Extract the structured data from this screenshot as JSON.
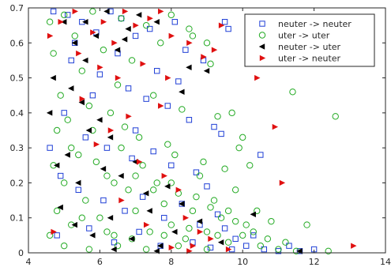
{
  "chart_data": {
    "type": "scatter",
    "title": "",
    "xlabel": "",
    "ylabel": "",
    "xlim": [
      4,
      14
    ],
    "ylim": [
      0,
      0.7
    ],
    "xticks": [
      4,
      6,
      8,
      10,
      12,
      14
    ],
    "yticks": [
      0,
      0.1,
      0.2,
      0.3,
      0.4,
      0.5,
      0.6,
      0.7
    ],
    "xtick_labels": [
      "4",
      "6",
      "8",
      "10",
      "12",
      "14"
    ],
    "ytick_labels": [
      "0",
      "0.1",
      "0.2",
      "0.3",
      "0.4",
      "0.5",
      "0.6",
      "0.7"
    ],
    "grid": false,
    "legend_position": "top-right",
    "series": [
      {
        "name": "neuter -> neuter",
        "marker": "square-open",
        "color": "#1f3fd6",
        "points": [
          [
            4.7,
            0.69
          ],
          [
            5.1,
            0.68
          ],
          [
            5.5,
            0.66
          ],
          [
            5.9,
            0.63
          ],
          [
            6.3,
            0.69
          ],
          [
            6.6,
            0.67
          ],
          [
            7.0,
            0.62
          ],
          [
            7.4,
            0.64
          ],
          [
            8.1,
            0.66
          ],
          [
            8.4,
            0.58
          ],
          [
            8.9,
            0.55
          ],
          [
            9.5,
            0.66
          ],
          [
            9.6,
            0.64
          ],
          [
            5.2,
            0.55
          ],
          [
            6.0,
            0.51
          ],
          [
            6.8,
            0.47
          ],
          [
            7.3,
            0.44
          ],
          [
            7.9,
            0.42
          ],
          [
            8.5,
            0.38
          ],
          [
            9.2,
            0.36
          ],
          [
            9.4,
            0.34
          ],
          [
            5.0,
            0.4
          ],
          [
            5.6,
            0.33
          ],
          [
            6.2,
            0.3
          ],
          [
            6.9,
            0.27
          ],
          [
            7.5,
            0.29
          ],
          [
            8.0,
            0.25
          ],
          [
            8.7,
            0.23
          ],
          [
            10.5,
            0.28
          ],
          [
            4.9,
            0.22
          ],
          [
            5.4,
            0.18
          ],
          [
            6.1,
            0.15
          ],
          [
            6.7,
            0.12
          ],
          [
            7.2,
            0.16
          ],
          [
            7.8,
            0.1
          ],
          [
            8.3,
            0.14
          ],
          [
            8.8,
            0.08
          ],
          [
            9.3,
            0.11
          ],
          [
            9.8,
            0.04
          ],
          [
            10.1,
            0.02
          ],
          [
            10.6,
            0.01
          ],
          [
            11.0,
            0.005
          ],
          [
            11.3,
            0.02
          ],
          [
            11.6,
            0.005
          ],
          [
            12.0,
            0.01
          ],
          [
            4.8,
            0.05
          ],
          [
            5.7,
            0.07
          ],
          [
            6.4,
            0.03
          ],
          [
            7.1,
            0.06
          ],
          [
            7.7,
            0.02
          ],
          [
            8.6,
            0.03
          ],
          [
            9.1,
            0.015
          ],
          [
            9.7,
            0.01
          ],
          [
            5.3,
            0.6
          ],
          [
            6.5,
            0.57
          ],
          [
            7.6,
            0.52
          ],
          [
            8.2,
            0.49
          ],
          [
            5.8,
            0.45
          ],
          [
            4.6,
            0.3
          ],
          [
            7.0,
            0.35
          ],
          [
            9.0,
            0.19
          ],
          [
            9.5,
            0.07
          ],
          [
            10.3,
            0.05
          ]
        ]
      },
      {
        "name": "uter -> uter",
        "marker": "circle-open",
        "color": "#22aa22",
        "points": [
          [
            4.6,
            0.05
          ],
          [
            4.8,
            0.12
          ],
          [
            5.0,
            0.2
          ],
          [
            5.2,
            0.08
          ],
          [
            5.4,
            0.28
          ],
          [
            5.6,
            0.15
          ],
          [
            5.8,
            0.35
          ],
          [
            6.0,
            0.1
          ],
          [
            6.2,
            0.22
          ],
          [
            6.4,
            0.05
          ],
          [
            6.6,
            0.3
          ],
          [
            6.8,
            0.18
          ],
          [
            7.0,
            0.12
          ],
          [
            7.2,
            0.25
          ],
          [
            7.4,
            0.06
          ],
          [
            7.6,
            0.2
          ],
          [
            7.8,
            0.14
          ],
          [
            8.0,
            0.08
          ],
          [
            8.2,
            0.17
          ],
          [
            8.4,
            0.04
          ],
          [
            8.6,
            0.12
          ],
          [
            8.8,
            0.22
          ],
          [
            9.0,
            0.06
          ],
          [
            9.2,
            0.15
          ],
          [
            9.4,
            0.1
          ],
          [
            9.6,
            0.03
          ],
          [
            9.8,
            0.18
          ],
          [
            10.0,
            0.05
          ],
          [
            10.5,
            0.02
          ],
          [
            11.0,
            0.01
          ],
          [
            11.5,
            0.005
          ],
          [
            11.8,
            0.08
          ],
          [
            12.4,
            0.005
          ],
          [
            12.6,
            0.39
          ],
          [
            11.4,
            0.46
          ],
          [
            9.3,
            0.39
          ],
          [
            8.3,
            0.41
          ],
          [
            7.5,
            0.45
          ],
          [
            6.5,
            0.48
          ],
          [
            5.5,
            0.52
          ],
          [
            4.7,
            0.57
          ],
          [
            5.3,
            0.62
          ],
          [
            6.1,
            0.58
          ],
          [
            6.9,
            0.55
          ],
          [
            7.7,
            0.6
          ],
          [
            8.6,
            0.62
          ],
          [
            9.1,
            0.54
          ],
          [
            9.7,
            0.4
          ],
          [
            10.0,
            0.33
          ],
          [
            10.2,
            0.25
          ],
          [
            9.9,
            0.3
          ],
          [
            10.4,
            0.12
          ],
          [
            10.8,
            0.09
          ],
          [
            4.9,
            0.45
          ],
          [
            5.1,
            0.38
          ],
          [
            5.7,
            0.42
          ],
          [
            6.3,
            0.4
          ],
          [
            6.7,
            0.36
          ],
          [
            7.1,
            0.33
          ],
          [
            7.9,
            0.31
          ],
          [
            8.1,
            0.28
          ],
          [
            8.9,
            0.26
          ],
          [
            9.5,
            0.24
          ],
          [
            4.6,
            0.66
          ],
          [
            5.0,
            0.68
          ],
          [
            5.8,
            0.69
          ],
          [
            6.6,
            0.67
          ],
          [
            7.3,
            0.65
          ],
          [
            8.0,
            0.68
          ],
          [
            8.5,
            0.64
          ],
          [
            9.0,
            0.6
          ],
          [
            4.7,
            0.25
          ],
          [
            5.2,
            0.3
          ],
          [
            5.9,
            0.26
          ],
          [
            6.4,
            0.2
          ],
          [
            7.0,
            0.22
          ],
          [
            7.5,
            0.18
          ],
          [
            8.0,
            0.2
          ],
          [
            8.7,
            0.16
          ],
          [
            9.1,
            0.13
          ],
          [
            9.6,
            0.12
          ],
          [
            10.1,
            0.08
          ],
          [
            10.7,
            0.04
          ],
          [
            11.2,
            0.03
          ],
          [
            4.8,
            0.35
          ],
          [
            5.5,
            0.1
          ],
          [
            6.2,
            0.06
          ],
          [
            6.9,
            0.04
          ],
          [
            7.8,
            0.05
          ],
          [
            8.5,
            0.07
          ],
          [
            9.3,
            0.05
          ],
          [
            9.8,
            0.09
          ],
          [
            10.3,
            0.06
          ],
          [
            5.0,
            0.02
          ],
          [
            5.7,
            0.01
          ],
          [
            6.5,
            0.02
          ],
          [
            7.3,
            0.01
          ],
          [
            8.2,
            0.02
          ],
          [
            9.0,
            0.01
          ]
        ]
      },
      {
        "name": "neuter -> uter",
        "marker": "triangle-left-filled",
        "color": "#000000",
        "points": [
          [
            4.7,
            0.5
          ],
          [
            5.0,
            0.66
          ],
          [
            5.3,
            0.6
          ],
          [
            5.6,
            0.55
          ],
          [
            5.9,
            0.62
          ],
          [
            6.2,
            0.69
          ],
          [
            6.5,
            0.58
          ],
          [
            6.8,
            0.64
          ],
          [
            7.1,
            0.68
          ],
          [
            7.6,
            0.66
          ],
          [
            8.3,
            0.46
          ],
          [
            8.5,
            0.53
          ],
          [
            9.0,
            0.52
          ],
          [
            5.2,
            0.47
          ],
          [
            5.5,
            0.43
          ],
          [
            6.0,
            0.38
          ],
          [
            5.7,
            0.35
          ],
          [
            6.3,
            0.33
          ],
          [
            5.1,
            0.28
          ],
          [
            4.8,
            0.25
          ],
          [
            5.4,
            0.2
          ],
          [
            6.1,
            0.24
          ],
          [
            6.6,
            0.22
          ],
          [
            7.0,
            0.26
          ],
          [
            7.3,
            0.17
          ],
          [
            7.9,
            0.19
          ],
          [
            8.3,
            0.14
          ],
          [
            8.8,
            0.09
          ],
          [
            9.4,
            0.03
          ],
          [
            10.3,
            0.11
          ],
          [
            11.6,
            0.005
          ],
          [
            4.9,
            0.13
          ],
          [
            5.3,
            0.08
          ],
          [
            5.8,
            0.05
          ],
          [
            6.3,
            0.1
          ],
          [
            6.9,
            0.04
          ],
          [
            7.4,
            0.12
          ],
          [
            7.7,
            0.02
          ],
          [
            8.1,
            0.06
          ],
          [
            6.4,
            0.01
          ],
          [
            7.6,
            0.005
          ],
          [
            4.6,
            0.4
          ],
          [
            5.6,
            0.66
          ],
          [
            6.7,
            0.61
          ]
        ]
      },
      {
        "name": "uter -> neuter",
        "marker": "triangle-right-filled",
        "color": "#e01010",
        "points": [
          [
            4.6,
            0.62
          ],
          [
            4.9,
            0.66
          ],
          [
            5.3,
            0.69
          ],
          [
            5.8,
            0.63
          ],
          [
            6.1,
            0.66
          ],
          [
            6.4,
            0.6
          ],
          [
            6.7,
            0.69
          ],
          [
            7.0,
            0.65
          ],
          [
            7.4,
            0.67
          ],
          [
            7.7,
            0.69
          ],
          [
            8.0,
            0.62
          ],
          [
            8.5,
            0.6
          ],
          [
            8.9,
            0.56
          ],
          [
            9.2,
            0.58
          ],
          [
            9.4,
            0.65
          ],
          [
            10.4,
            0.5
          ],
          [
            10.9,
            0.36
          ],
          [
            11.1,
            0.2
          ],
          [
            13.1,
            0.02
          ],
          [
            5.4,
            0.57
          ],
          [
            6.0,
            0.53
          ],
          [
            6.5,
            0.5
          ],
          [
            7.2,
            0.54
          ],
          [
            7.9,
            0.5
          ],
          [
            7.7,
            0.42
          ],
          [
            6.8,
            0.39
          ],
          [
            6.3,
            0.35
          ],
          [
            5.9,
            0.31
          ],
          [
            7.1,
            0.26
          ],
          [
            7.8,
            0.22
          ],
          [
            8.2,
            0.18
          ],
          [
            8.4,
            0.1
          ],
          [
            8.8,
            0.06
          ],
          [
            9.1,
            0.04
          ],
          [
            8.6,
            0.02
          ],
          [
            8.0,
            0.015
          ],
          [
            5.5,
            0.44
          ],
          [
            6.6,
            0.15
          ],
          [
            7.3,
            0.08
          ],
          [
            8.5,
            0.005
          ],
          [
            9.6,
            0.01
          ],
          [
            4.7,
            0.06
          ]
        ]
      }
    ]
  }
}
